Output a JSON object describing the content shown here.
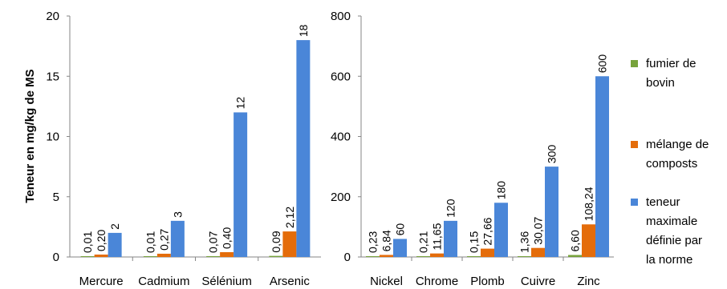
{
  "chart_data": [
    {
      "type": "bar",
      "ylabel": "Teneur en mg/kg de MS",
      "ylim": [
        0,
        20
      ],
      "yticks": [
        "0",
        "5",
        "10",
        "15",
        "20"
      ],
      "categories": [
        "Mercure",
        "Cadmium",
        "Sélénium",
        "Arsenic"
      ],
      "series": [
        {
          "name": "fumier de bovin",
          "color": "#77a33c",
          "values": [
            0.01,
            0.01,
            0.07,
            0.09
          ],
          "labels": [
            "0,01",
            "0,01",
            "0,07",
            "0,09"
          ]
        },
        {
          "name": "mélange de composts",
          "color": "#e46c0a",
          "values": [
            0.2,
            0.27,
            0.4,
            2.12
          ],
          "labels": [
            "0,20",
            "0,27",
            "0,40",
            "2,12"
          ]
        },
        {
          "name": "teneur maximale définie par la norme",
          "color": "#4a86d8",
          "values": [
            2,
            3,
            12,
            18
          ],
          "labels": [
            "2",
            "3",
            "12",
            "18"
          ]
        }
      ]
    },
    {
      "type": "bar",
      "ylim": [
        0,
        800
      ],
      "yticks": [
        "0",
        "200",
        "400",
        "600",
        "800"
      ],
      "categories": [
        "Nickel",
        "Chrome",
        "Plomb",
        "Cuivre",
        "Zinc"
      ],
      "series": [
        {
          "name": "fumier de bovin",
          "color": "#77a33c",
          "values": [
            0.23,
            0.21,
            0.15,
            1.36,
            6.6
          ],
          "labels": [
            "0,23",
            "0,21",
            "0,15",
            "1,36",
            "6,60"
          ]
        },
        {
          "name": "mélange de composts",
          "color": "#e46c0a",
          "values": [
            6.84,
            11.65,
            27.66,
            30.07,
            108.24
          ],
          "labels": [
            "6,84",
            "11,65",
            "27,66",
            "30,07",
            "108,24"
          ]
        },
        {
          "name": "teneur maximale définie par la norme",
          "color": "#4a86d8",
          "values": [
            60,
            120,
            180,
            300,
            600
          ],
          "labels": [
            "60",
            "120",
            "180",
            "300",
            "600"
          ]
        }
      ]
    }
  ],
  "legend": [
    {
      "lines": [
        "fumier de",
        "bovin"
      ],
      "color": "#77a33c"
    },
    {
      "lines": [
        "mélange de",
        "composts"
      ],
      "color": "#e46c0a"
    },
    {
      "lines": [
        "teneur",
        "maximale",
        "définie par",
        "la norme"
      ],
      "color": "#4a86d8"
    }
  ]
}
